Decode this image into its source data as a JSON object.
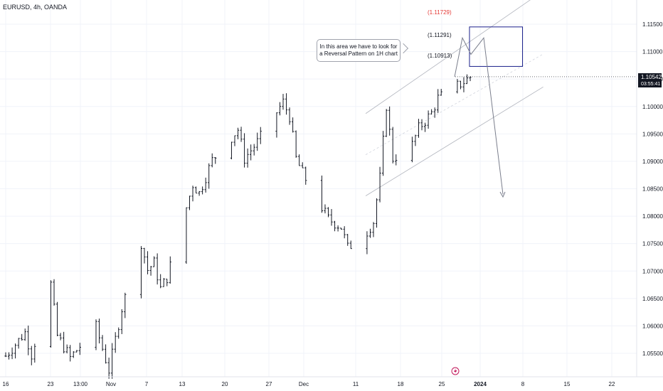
{
  "symbol": "EURUSD, 4h, OANDA",
  "annotation": {
    "line1": "In this area we have to look for",
    "line2": "a Reversal Pattern on 1H chart"
  },
  "levels": [
    {
      "label": "(1.11729)",
      "value": 1.11729,
      "color": "#e53935"
    },
    {
      "label": "(1.11291)",
      "value": 1.11291,
      "color": "#131722"
    },
    {
      "label": "(1.10913)",
      "value": 1.10913,
      "color": "#131722"
    }
  ],
  "price_badge": {
    "price": "1.10542",
    "countdown": "03:55:41"
  },
  "colors": {
    "bars": "#131722",
    "box": "#1a1f8a",
    "channel": "#b2b5be",
    "grid": "#f0f3fa"
  },
  "chart_data": {
    "type": "ohlc",
    "yticks": [
      1.055,
      1.06,
      1.065,
      1.07,
      1.075,
      1.08,
      1.085,
      1.09,
      1.095,
      1.1,
      1.105,
      1.11,
      1.115
    ],
    "ytick_labels": [
      "1.05500",
      "1.06000",
      "1.06500",
      "1.07000",
      "1.07500",
      "1.08000",
      "1.08500",
      "1.09000",
      "1.09500",
      "1.10000",
      "1.10500",
      "1.11000",
      "1.11500"
    ],
    "ylim": [
      1.0515,
      1.1195
    ],
    "xticks": [
      "16",
      "23",
      "13:00",
      "Nov",
      "7",
      "13",
      "20",
      "27",
      "Dec",
      "11",
      "18",
      "25",
      "2024",
      "8",
      "15",
      "22"
    ],
    "xlabel": "",
    "ylabel": "",
    "grid": true,
    "price_path": [
      [
        "Oct 16",
        1.0545
      ],
      [
        "Oct 19",
        1.0588
      ],
      [
        "Oct 20",
        1.0548
      ],
      [
        "Oct 23",
        1.0676
      ],
      [
        "Oct 24",
        1.0582
      ],
      [
        "Oct 26",
        1.0542
      ],
      [
        "Oct 30",
        1.0598
      ],
      [
        "Nov 01",
        1.0519
      ],
      [
        "Nov 03",
        1.0632
      ],
      [
        "Nov 06",
        1.0752
      ],
      [
        "Nov 07",
        1.0702
      ],
      [
        "Nov 08",
        1.0715
      ],
      [
        "Nov 09",
        1.0668
      ],
      [
        "Nov 10",
        1.0688
      ],
      [
        "Nov 14",
        1.0858
      ],
      [
        "Nov 15",
        1.0842
      ],
      [
        "Nov 17",
        1.0902
      ],
      [
        "Nov 21",
        1.0958
      ],
      [
        "Nov 22",
        1.0905
      ],
      [
        "Nov 24",
        1.0935
      ],
      [
        "Nov 28",
        1.1008
      ],
      [
        "Nov 29",
        1.0982
      ],
      [
        "Nov 30",
        1.0905
      ],
      [
        "Dec 01",
        1.0878
      ],
      [
        "Dec 05",
        1.0795
      ],
      [
        "Dec 07",
        1.078
      ],
      [
        "Dec 08",
        1.0742
      ],
      [
        "Dec 11",
        1.0772
      ],
      [
        "Dec 12",
        1.079
      ],
      [
        "Dec 13",
        1.087
      ],
      [
        "Dec 14",
        1.1002
      ],
      [
        "Dec 15",
        1.0905
      ],
      [
        "Dec 18",
        1.093
      ],
      [
        "Dec 19",
        1.096
      ],
      [
        "Dec 21",
        1.0988
      ],
      [
        "Dec 22",
        1.1015
      ],
      [
        "Dec 26",
        1.1045
      ],
      [
        "Dec 27",
        1.1054
      ]
    ],
    "last_price": 1.10542,
    "rectangle": {
      "x_start": "Dec 26",
      "x_end": "Jan 03",
      "y_top": 1.1145,
      "y_bottom": 1.1073
    },
    "projection": [
      [
        "Dec 27",
        1.1054
      ],
      [
        "Dec 28",
        1.1125
      ],
      [
        "Dec 29",
        1.1095
      ],
      [
        "Jan 01",
        1.1125
      ],
      [
        "Jan 04",
        1.084
      ]
    ],
    "channel": {
      "upper": [
        [
          "Dec 13",
          1.1
        ],
        [
          "Jan 04",
          1.1195
        ]
      ],
      "middle": [
        [
          "Dec 13",
          1.0925
        ],
        [
          "Jan 04",
          1.108
        ]
      ],
      "lower": [
        [
          "Dec 13",
          1.085
        ],
        [
          "Jan 04",
          1.102
        ]
      ]
    }
  }
}
